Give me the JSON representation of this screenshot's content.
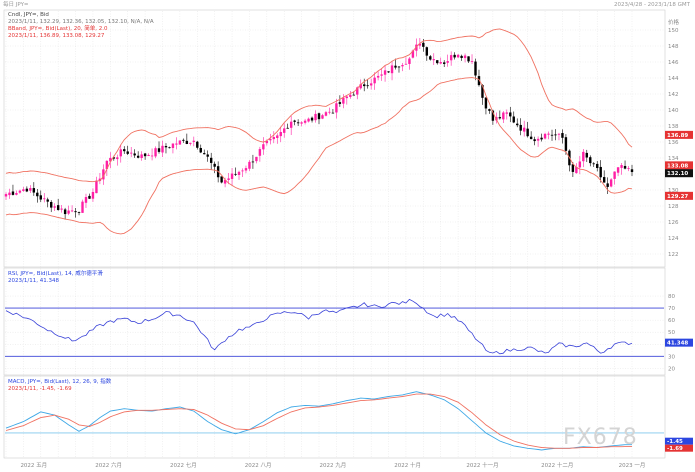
{
  "header": {
    "left": "每日 JPY=",
    "right": "2023/4/28 - 2023/1/18 GMT"
  },
  "legends": {
    "main": [
      "Cndl, JPY=, Bid",
      "2023/1/11, 132.29, 132.36, 132.05, 132.10, N/A, N/A"
    ],
    "bband": [
      "BBand, JPY=, Bid(Last), 20, 简单, 2.0",
      "2023/1/11, 136.89, 133.08, 129.27"
    ],
    "rsi": [
      "RSI, JPY=, Bid(Last), 14, 威尔德平滑",
      "2023/1/11, 41.348"
    ],
    "macd": [
      "MACD, JPY=, Bid(Last), 12, 26, 9, 指数",
      "2023/1/11, -1.45, -1.69"
    ]
  },
  "watermark": "FX678",
  "colors": {
    "up": "#ff1fa5",
    "down": "#000000",
    "bband": "#f07262",
    "rsi": "#3a43d8",
    "rsi_levels": "#3a43d8",
    "macd": "#3fa8e6",
    "signal": "#f07262",
    "grid": "#dcdcdc",
    "label_red": "#e53333",
    "label_black": "#111111",
    "label_blue": "#2c46e0"
  },
  "chart_data": [
    {
      "type": "candlestick",
      "panel": "price",
      "y_ticks": [
        122,
        124,
        126,
        128,
        130,
        132,
        134,
        136,
        138,
        140,
        142,
        144,
        146,
        148,
        150
      ],
      "y_unit_label": "价格",
      "ylim": [
        121,
        152
      ],
      "x_labels": [
        "2022 五月",
        "2022 六月",
        "2022 七月",
        "2022 八月",
        "2022 九月",
        "2022 十月",
        "2022 十一月",
        "2022 十二月",
        "2023 一月"
      ],
      "last_values": {
        "upper": "136.89",
        "last": "132.10",
        "lower": "129.27",
        "mid": "133.08"
      },
      "close_anchors": [
        [
          0,
          129.5
        ],
        [
          6,
          130.2
        ],
        [
          12,
          128.4
        ],
        [
          17,
          127.3
        ],
        [
          21,
          127.6
        ],
        [
          25,
          129.8
        ],
        [
          29,
          133.6
        ],
        [
          34,
          134.9
        ],
        [
          39,
          134.2
        ],
        [
          44,
          135.0
        ],
        [
          49,
          135.9
        ],
        [
          54,
          136.2
        ],
        [
          58,
          134.0
        ],
        [
          62,
          131.0
        ],
        [
          66,
          132.0
        ],
        [
          70,
          133.3
        ],
        [
          74,
          135.4
        ],
        [
          78,
          136.6
        ],
        [
          82,
          138.7
        ],
        [
          86,
          138.5
        ],
        [
          90,
          139.3
        ],
        [
          94,
          140.0
        ],
        [
          98,
          141.6
        ],
        [
          103,
          143.2
        ],
        [
          108,
          144.3
        ],
        [
          112,
          145.6
        ],
        [
          116,
          146.4
        ],
        [
          119,
          148.6
        ],
        [
          122,
          146.5
        ],
        [
          126,
          146.0
        ],
        [
          130,
          147.2
        ],
        [
          134,
          146.2
        ],
        [
          137,
          141.6
        ],
        [
          140,
          138.7
        ],
        [
          144,
          139.5
        ],
        [
          148,
          137.8
        ],
        [
          152,
          136.4
        ],
        [
          156,
          137.1
        ],
        [
          160,
          136.5
        ],
        [
          163,
          131.9
        ],
        [
          166,
          134.4
        ],
        [
          170,
          132.4
        ],
        [
          173,
          130.2
        ],
        [
          176,
          132.8
        ],
        [
          180,
          132.3
        ]
      ],
      "bollinger": {
        "period": 20,
        "multiplier": 2.0
      }
    },
    {
      "type": "line",
      "panel": "rsi",
      "title": "RSI",
      "y_ticks": [
        20,
        30,
        40,
        50,
        60,
        70,
        80
      ],
      "ylim": [
        17,
        90
      ],
      "levels": [
        70,
        30
      ],
      "last_value": "41.348",
      "points": [
        [
          0,
          68
        ],
        [
          4,
          64
        ],
        [
          8,
          59
        ],
        [
          12,
          52
        ],
        [
          16,
          47
        ],
        [
          19,
          43
        ],
        [
          22,
          46
        ],
        [
          26,
          54
        ],
        [
          30,
          59
        ],
        [
          34,
          61
        ],
        [
          38,
          58
        ],
        [
          42,
          61
        ],
        [
          46,
          66
        ],
        [
          50,
          64
        ],
        [
          54,
          58
        ],
        [
          57,
          47
        ],
        [
          60,
          35
        ],
        [
          63,
          44
        ],
        [
          67,
          52
        ],
        [
          71,
          55
        ],
        [
          75,
          62
        ],
        [
          79,
          66
        ],
        [
          83,
          67
        ],
        [
          87,
          62
        ],
        [
          91,
          68
        ],
        [
          95,
          66
        ],
        [
          99,
          70
        ],
        [
          103,
          73
        ],
        [
          107,
          71
        ],
        [
          111,
          74
        ],
        [
          114,
          74
        ],
        [
          117,
          77
        ],
        [
          120,
          70
        ],
        [
          123,
          63
        ],
        [
          127,
          65
        ],
        [
          131,
          58
        ],
        [
          135,
          45
        ],
        [
          139,
          32
        ],
        [
          143,
          34
        ],
        [
          147,
          36
        ],
        [
          151,
          37
        ],
        [
          155,
          32
        ],
        [
          159,
          40
        ],
        [
          163,
          38
        ],
        [
          167,
          41
        ],
        [
          171,
          33
        ],
        [
          175,
          40
        ],
        [
          178,
          41
        ],
        [
          180,
          41
        ]
      ]
    },
    {
      "type": "line",
      "panel": "macd",
      "title": "MACD",
      "y_ticks": [
        -1.69,
        -1.45
      ],
      "ylim": [
        -2.6,
        5.8
      ],
      "zero_line": 0,
      "last_values": {
        "macd": "-1.45",
        "signal": "-1.69"
      },
      "series": [
        {
          "name": "MACD",
          "points": [
            [
              0,
              0.6
            ],
            [
              5,
              1.4
            ],
            [
              10,
              2.6
            ],
            [
              14,
              2.2
            ],
            [
              18,
              1.0
            ],
            [
              21,
              0.2
            ],
            [
              24,
              0.9
            ],
            [
              27,
              1.9
            ],
            [
              30,
              2.7
            ],
            [
              34,
              3.0
            ],
            [
              38,
              2.8
            ],
            [
              42,
              2.7
            ],
            [
              46,
              3.0
            ],
            [
              50,
              3.2
            ],
            [
              54,
              2.7
            ],
            [
              58,
              1.4
            ],
            [
              62,
              0.4
            ],
            [
              66,
              -0.1
            ],
            [
              70,
              0.4
            ],
            [
              74,
              1.4
            ],
            [
              78,
              2.5
            ],
            [
              82,
              3.2
            ],
            [
              86,
              3.4
            ],
            [
              90,
              3.3
            ],
            [
              94,
              3.6
            ],
            [
              98,
              4.0
            ],
            [
              102,
              4.3
            ],
            [
              106,
              4.2
            ],
            [
              110,
              4.5
            ],
            [
              114,
              4.7
            ],
            [
              118,
              5.1
            ],
            [
              122,
              4.7
            ],
            [
              126,
              4.1
            ],
            [
              130,
              3.0
            ],
            [
              134,
              1.5
            ],
            [
              138,
              0.0
            ],
            [
              142,
              -1.0
            ],
            [
              146,
              -1.6
            ],
            [
              150,
              -1.9
            ],
            [
              154,
              -2.1
            ],
            [
              158,
              -1.9
            ],
            [
              162,
              -1.9
            ],
            [
              166,
              -1.7
            ],
            [
              170,
              -1.8
            ],
            [
              174,
              -1.6
            ],
            [
              178,
              -1.45
            ],
            [
              180,
              -1.45
            ]
          ]
        },
        {
          "name": "Signal",
          "points": [
            [
              0,
              0.3
            ],
            [
              5,
              0.9
            ],
            [
              10,
              1.9
            ],
            [
              14,
              2.2
            ],
            [
              18,
              1.7
            ],
            [
              21,
              1.0
            ],
            [
              24,
              0.8
            ],
            [
              27,
              1.3
            ],
            [
              30,
              2.0
            ],
            [
              34,
              2.6
            ],
            [
              38,
              2.8
            ],
            [
              42,
              2.8
            ],
            [
              46,
              2.9
            ],
            [
              50,
              3.0
            ],
            [
              54,
              2.9
            ],
            [
              58,
              2.2
            ],
            [
              62,
              1.2
            ],
            [
              66,
              0.5
            ],
            [
              70,
              0.4
            ],
            [
              74,
              0.9
            ],
            [
              78,
              1.8
            ],
            [
              82,
              2.6
            ],
            [
              86,
              3.1
            ],
            [
              90,
              3.2
            ],
            [
              94,
              3.4
            ],
            [
              98,
              3.7
            ],
            [
              102,
              4.0
            ],
            [
              106,
              4.1
            ],
            [
              110,
              4.3
            ],
            [
              114,
              4.5
            ],
            [
              118,
              4.8
            ],
            [
              122,
              4.8
            ],
            [
              126,
              4.5
            ],
            [
              130,
              3.8
            ],
            [
              134,
              2.5
            ],
            [
              138,
              1.0
            ],
            [
              142,
              -0.2
            ],
            [
              146,
              -1.0
            ],
            [
              150,
              -1.5
            ],
            [
              154,
              -1.8
            ],
            [
              158,
              -1.9
            ],
            [
              162,
              -1.9
            ],
            [
              166,
              -1.8
            ],
            [
              170,
              -1.8
            ],
            [
              174,
              -1.7
            ],
            [
              178,
              -1.69
            ],
            [
              180,
              -1.69
            ]
          ]
        }
      ]
    }
  ]
}
